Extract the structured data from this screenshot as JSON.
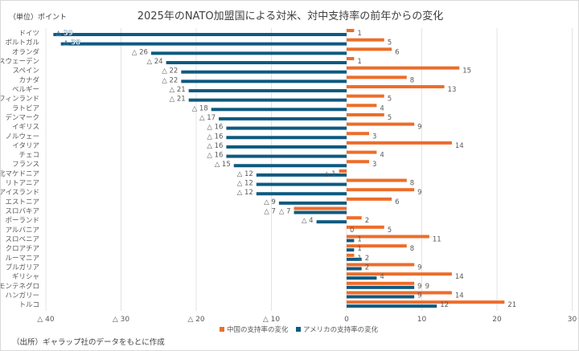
{
  "chart_data": {
    "type": "bar",
    "orientation": "horizontal",
    "title": "2025年のNATO加盟国による対米、対中支持率の前年からの変化",
    "unit_label": "（単位）ポイント",
    "source": "（出所）ギャラップ社のデータをもとに作成",
    "negative_prefix": "△",
    "categories": [
      "ドイツ",
      "ポルトガル",
      "オランダ",
      "スウェーデン",
      "スペイン",
      "カナダ",
      "ベルギー",
      "フィンランド",
      "ラトビア",
      "デンマーク",
      "イギリス",
      "ノルウェー",
      "イタリア",
      "チェコ",
      "フランス",
      "北マケドニア",
      "リトアニア",
      "アイスランド",
      "エストニア",
      "スロバキア",
      "ポーランド",
      "アルバニア",
      "スロベニア",
      "クロアチア",
      "ルーマニア",
      "ブルガリア",
      "ギリシャ",
      "モンテネグロ",
      "ハンガリー",
      "トルコ"
    ],
    "series": [
      {
        "name": "中国の支持率の変化",
        "color": "#ed6d2a",
        "values": [
          1,
          5,
          6,
          1,
          15,
          8,
          13,
          5,
          4,
          5,
          9,
          3,
          14,
          4,
          3,
          -1,
          8,
          9,
          6,
          -7,
          2,
          5,
          11,
          8,
          1,
          9,
          14,
          9,
          14,
          21
        ]
      },
      {
        "name": "アメリカの支持率の変化",
        "color": "#0e5a80",
        "values": [
          -39,
          -38,
          -26,
          -24,
          -22,
          -22,
          -21,
          -21,
          -18,
          -17,
          -16,
          -16,
          -16,
          -16,
          -15,
          -12,
          -12,
          -12,
          -9,
          -7,
          -4,
          0,
          1,
          1,
          2,
          2,
          4,
          9,
          9,
          12
        ]
      }
    ],
    "xlim": [
      -40,
      30
    ],
    "xticks": [
      -40,
      -30,
      -20,
      -10,
      0,
      10,
      20,
      30
    ],
    "xtick_labels": [
      "△ 40",
      "△ 30",
      "△ 20",
      "△ 10",
      "0",
      "10",
      "20",
      "30"
    ],
    "grid": true,
    "legend": "bottom"
  }
}
